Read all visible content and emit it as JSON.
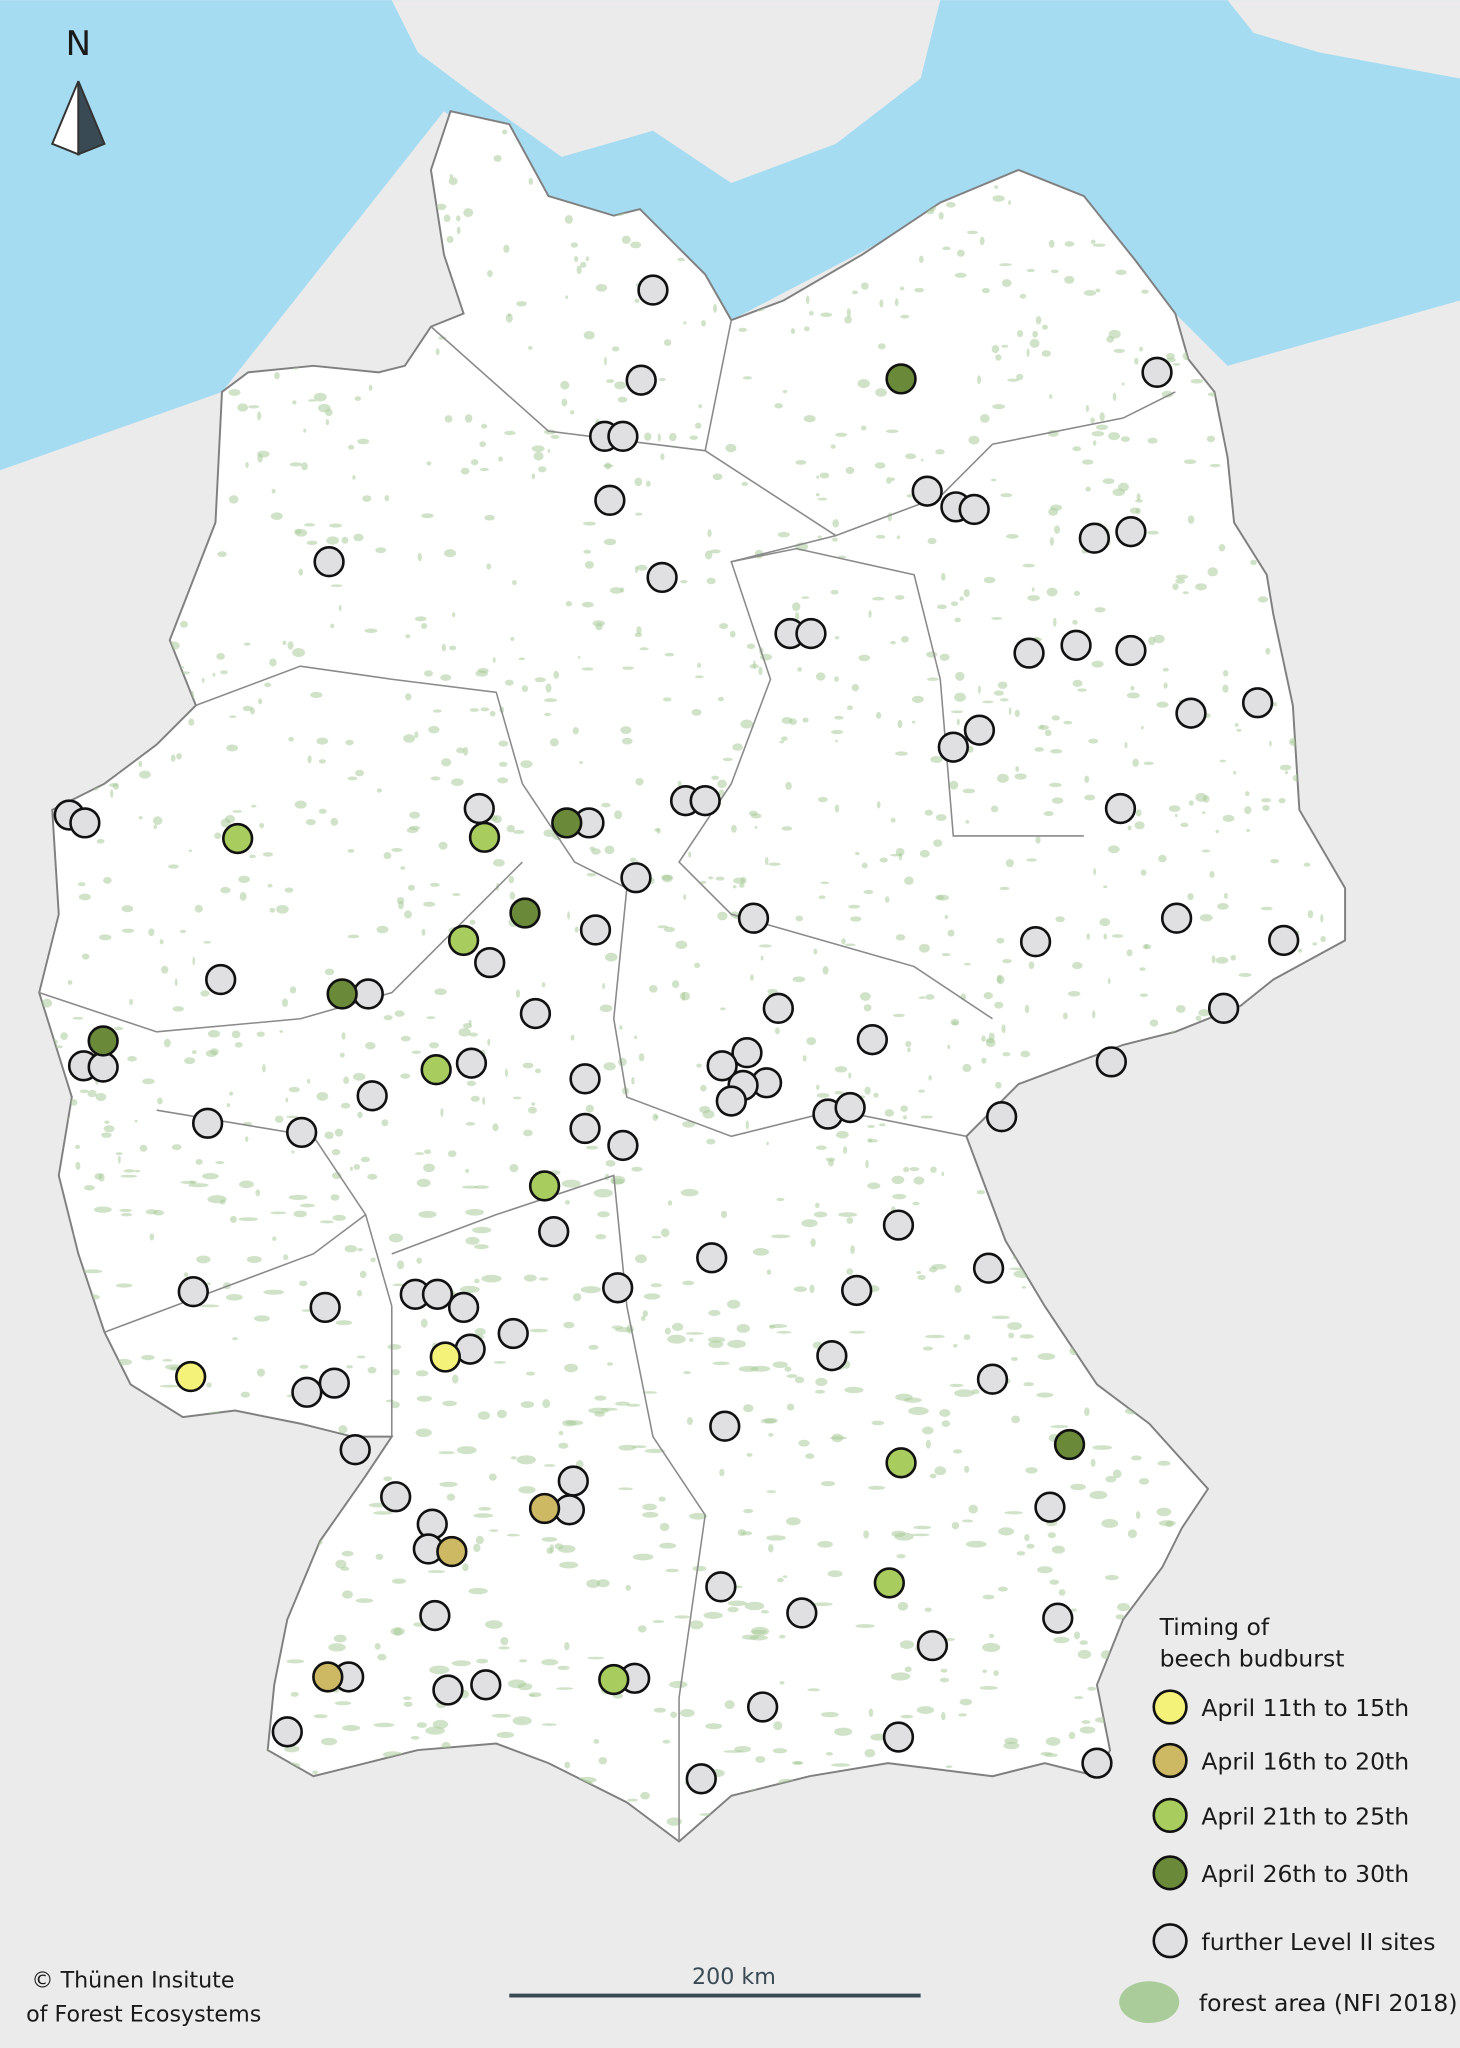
{
  "north_arrow": {
    "label": "N"
  },
  "legend": {
    "title_line1": "Timing of",
    "title_line2": "beech budburst",
    "classes": [
      {
        "label": "April 11th to 15th",
        "color": "#f5f27a"
      },
      {
        "label": "April 16th to 20th",
        "color": "#cdb863"
      },
      {
        "label": "April 21th to 25th",
        "color": "#a8cc5e"
      },
      {
        "label": "April 26th to 30th",
        "color": "#6a8a3a"
      },
      {
        "label": "further Level II sites",
        "color": "#e0e0e2"
      }
    ],
    "forest_label": "forest area (NFI 2018)",
    "forest_color": "#a9cc9a"
  },
  "scale_bar": {
    "label": "200 km"
  },
  "credit": {
    "line1": "© Thünen Insitute",
    "line2": "of Forest Ecosystems"
  },
  "colors": {
    "sea": "#a6dcf2",
    "land": "#ffffff",
    "background": "#ebebeb",
    "border": "#808080"
  }
}
